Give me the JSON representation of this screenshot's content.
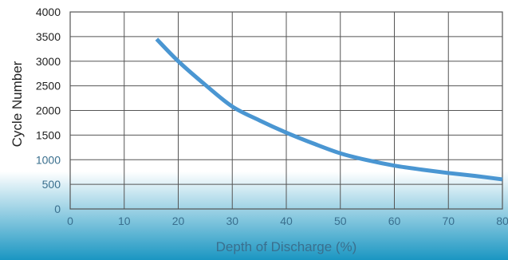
{
  "colors": {
    "background_top": "#ffffff",
    "background_bottom": "#1a96c2",
    "grid": "#555555",
    "curve": "#4a96d2",
    "tick_text_upper": "#222222",
    "tick_text_lower": "#3a6f8e",
    "xlabel_text": "#3a6f8e"
  },
  "chart_data": {
    "type": "line",
    "title": "",
    "xlabel": "Depth of Discharge (%)",
    "ylabel": "Cycle Number",
    "xlim": [
      0,
      80
    ],
    "ylim": [
      0,
      4000
    ],
    "xticks": [
      0,
      10,
      20,
      30,
      40,
      50,
      60,
      70,
      80
    ],
    "yticks": [
      0,
      500,
      1000,
      1500,
      2000,
      2500,
      3000,
      3500,
      4000
    ],
    "grid": true,
    "legend": "none",
    "series": [
      {
        "x": [
          16,
          20,
          25,
          30,
          35,
          40,
          45,
          50,
          55,
          60,
          65,
          70,
          75,
          80
        ],
        "values": [
          3450,
          3000,
          2520,
          2080,
          1800,
          1550,
          1330,
          1130,
          990,
          880,
          800,
          730,
          670,
          600
        ]
      }
    ]
  }
}
